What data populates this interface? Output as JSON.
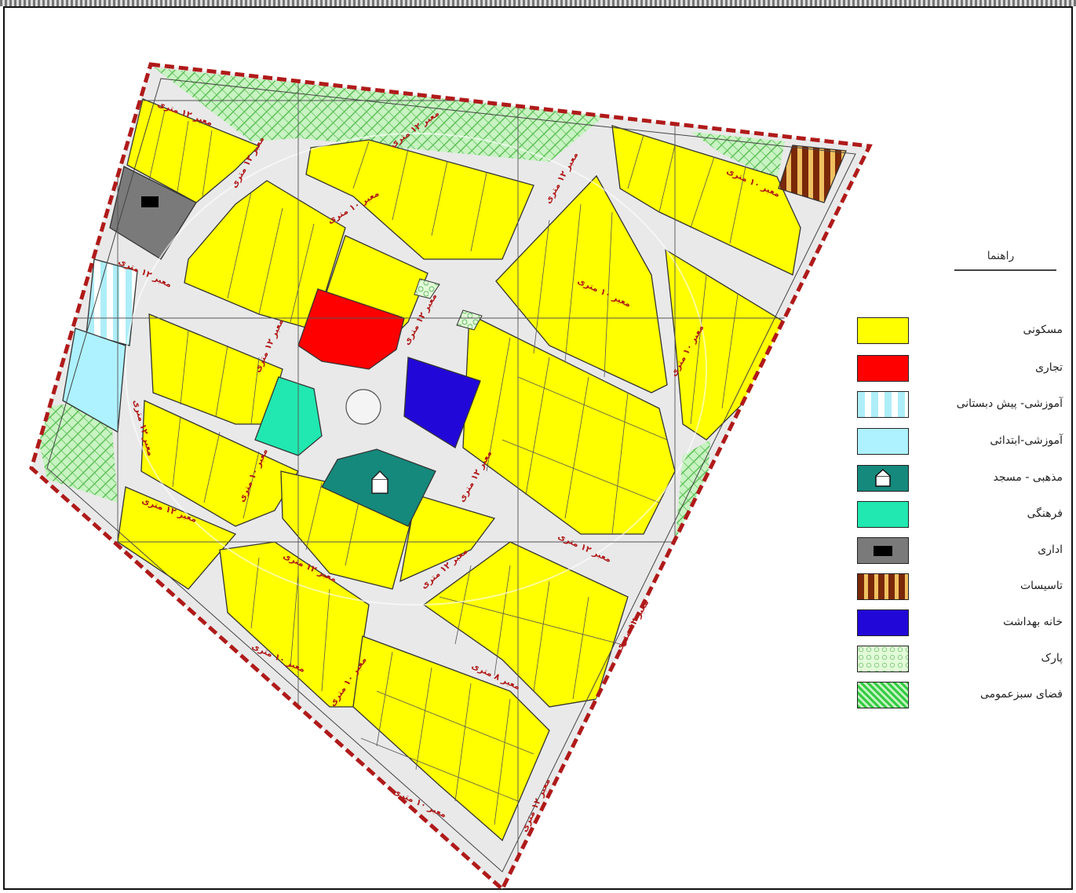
{
  "legend": {
    "title": "راهنما",
    "items": [
      {
        "label": "مسکونی",
        "color": "#ffff00",
        "icon": "none"
      },
      {
        "label": "تجاری",
        "color": "#ff0000",
        "icon": "none"
      },
      {
        "label": "آموزشی- پیش دبستانی",
        "color": "#ccf5ff",
        "icon": "vertical-stripes"
      },
      {
        "label": "آموزشی-ابتدائی",
        "color": "#aef2ff",
        "icon": "none"
      },
      {
        "label": "مذهبی - مسجد",
        "color": "#15897c",
        "icon": "mosque-icon"
      },
      {
        "label": "فرهنگی",
        "color": "#20e8b0",
        "icon": "none"
      },
      {
        "label": "اداری",
        "color": "#7a7a7a",
        "icon": "black-rect-icon"
      },
      {
        "label": "تاسیسات",
        "color": "#8b2a0a",
        "icon": "vertical-stripes-brown"
      },
      {
        "label": "خانه بهداشت",
        "color": "#2208d8",
        "icon": "crescent-icon"
      },
      {
        "label": "پارک",
        "color": "#d8ffcc",
        "icon": "pattern-park"
      },
      {
        "label": "فضای سبزعمومی",
        "color": "#33cc44",
        "icon": "pattern-green"
      }
    ]
  },
  "map_labels": {
    "street": "معبر ۱۲ متری",
    "street_b": "معبر ۱۰ متری",
    "street_c": "معبر ۸ متری"
  }
}
